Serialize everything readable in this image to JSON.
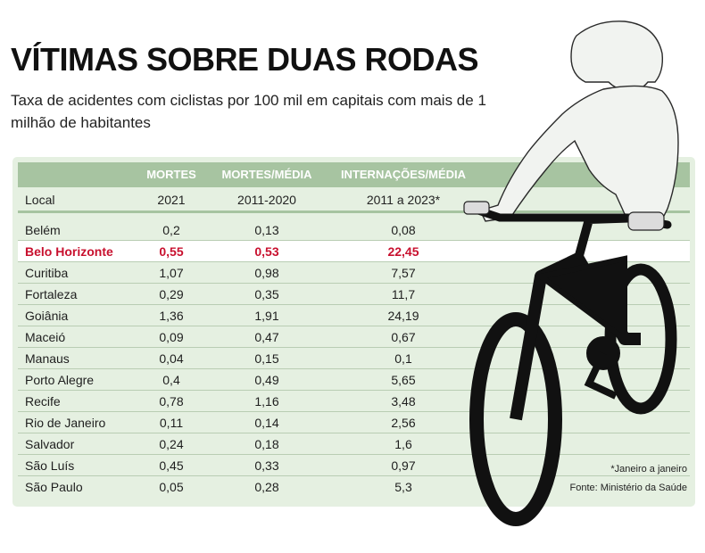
{
  "title": "VÍTIMAS SOBRE DUAS RODAS",
  "subtitle": "Taxa de acidentes com ciclistas por 100 mil em capitais com mais de 1 milhão de habitantes",
  "colors": {
    "header_band": "#a7c4a1",
    "panel_bg": "#e5f0e1",
    "highlight": "#c8102e",
    "bike": "#111111"
  },
  "notes": {
    "asterisk": "*Janeiro a janeiro",
    "source": "Fonte: Ministério da Saúde"
  },
  "chart_data": {
    "type": "table",
    "columns": [
      {
        "header": "",
        "subheader": "Local"
      },
      {
        "header": "MORTES",
        "subheader": "2021"
      },
      {
        "header": "MORTES/MÉDIA",
        "subheader": "2011-2020"
      },
      {
        "header": "INTERNAÇÕES/MÉDIA",
        "subheader": "2011 a 2023*"
      }
    ],
    "highlight_row": "Belo Horizonte",
    "rows": [
      {
        "local": "Belém",
        "mortes_2021": "0,2",
        "mortes_media": "0,13",
        "internacoes_media": "0,08"
      },
      {
        "local": "Belo Horizonte",
        "mortes_2021": "0,55",
        "mortes_media": "0,53",
        "internacoes_media": "22,45"
      },
      {
        "local": "Curitiba",
        "mortes_2021": "1,07",
        "mortes_media": "0,98",
        "internacoes_media": "7,57"
      },
      {
        "local": "Fortaleza",
        "mortes_2021": "0,29",
        "mortes_media": "0,35",
        "internacoes_media": "11,7"
      },
      {
        "local": "Goiânia",
        "mortes_2021": "1,36",
        "mortes_media": "1,91",
        "internacoes_media": "24,19"
      },
      {
        "local": "Maceió",
        "mortes_2021": "0,09",
        "mortes_media": "0,47",
        "internacoes_media": "0,67"
      },
      {
        "local": "Manaus",
        "mortes_2021": "0,04",
        "mortes_media": "0,15",
        "internacoes_media": "0,1"
      },
      {
        "local": "Porto Alegre",
        "mortes_2021": "0,4",
        "mortes_media": "0,49",
        "internacoes_media": "5,65"
      },
      {
        "local": "Recife",
        "mortes_2021": "0,78",
        "mortes_media": "1,16",
        "internacoes_media": "3,48"
      },
      {
        "local": "Rio de Janeiro",
        "mortes_2021": "0,11",
        "mortes_media": "0,14",
        "internacoes_media": "2,56"
      },
      {
        "local": "Salvador",
        "mortes_2021": "0,24",
        "mortes_media": "0,18",
        "internacoes_media": "1,6"
      },
      {
        "local": "São Luís",
        "mortes_2021": "0,45",
        "mortes_media": "0,33",
        "internacoes_media": "0,97"
      },
      {
        "local": "São Paulo",
        "mortes_2021": "0,05",
        "mortes_media": "0,28",
        "internacoes_media": "5,3"
      }
    ]
  }
}
